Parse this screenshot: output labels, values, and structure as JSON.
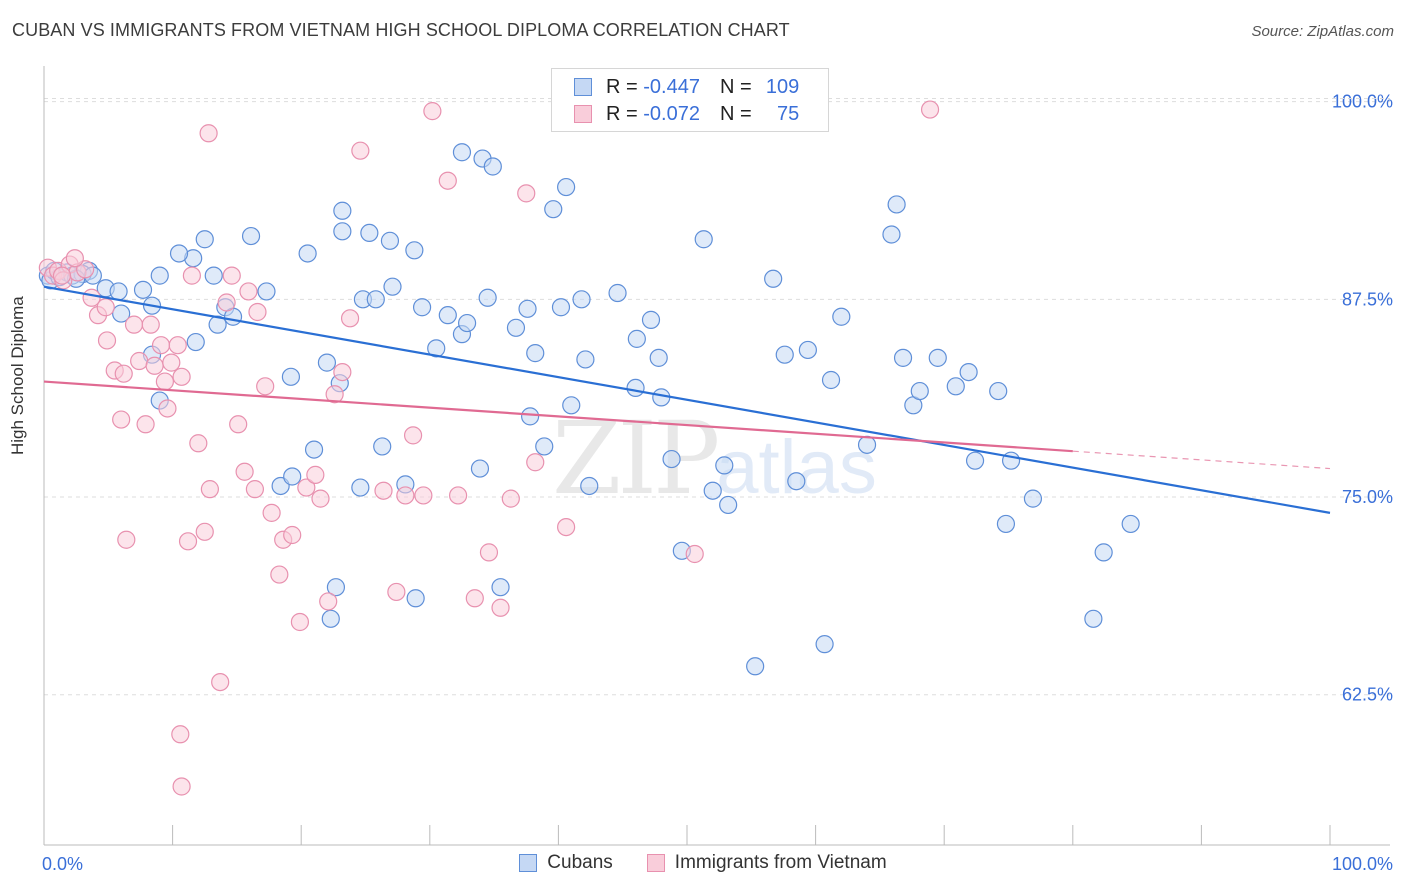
{
  "title": "CUBAN VS IMMIGRANTS FROM VIETNAM HIGH SCHOOL DIPLOMA CORRELATION CHART",
  "source": "Source: ZipAtlas.com",
  "watermark": {
    "zip": "ZIP",
    "atlas": "atlas"
  },
  "legend": {
    "r_label": "R =",
    "n_label": "N =",
    "rows": [
      {
        "r": "-0.447",
        "n": "109"
      },
      {
        "r": "-0.072",
        "n": "75"
      }
    ]
  },
  "colors": {
    "cubans_fill": "#c5d8f4",
    "cubans_stroke": "#5f8fd8",
    "cubans_line": "#2a6fd4",
    "vietnam_fill": "#f9cdda",
    "vietnam_stroke": "#e891af",
    "vietnam_line": "#e06a92",
    "tick_label": "#3a6fd8",
    "grid": "#dddddd"
  },
  "chart_data": {
    "type": "scatter",
    "title": "CUBAN VS IMMIGRANTS FROM VIETNAM HIGH SCHOOL DIPLOMA CORRELATION CHART",
    "xlabel": "",
    "ylabel": "High School Diploma",
    "xlim": [
      0,
      100
    ],
    "ylim": [
      53,
      102
    ],
    "x_tick_labels": [
      "0.0%",
      "100.0%"
    ],
    "y_ticks": [
      62.5,
      75.0,
      87.5,
      100.0
    ],
    "y_tick_labels": [
      "62.5%",
      "75.0%",
      "87.5%",
      "100.0%"
    ],
    "grid": true,
    "legend_position": "top-center",
    "series": [
      {
        "name": "Cubans",
        "trend": {
          "x0": 0,
          "y0": 88.3,
          "x1": 100,
          "y1": 74.0,
          "dash_from": 100
        },
        "points": [
          [
            0.3,
            89.0
          ],
          [
            0.5,
            88.7
          ],
          [
            0.8,
            89.3
          ],
          [
            1.2,
            88.9
          ],
          [
            1.8,
            89.2
          ],
          [
            2.2,
            89.0
          ],
          [
            3.5,
            89.3
          ],
          [
            3.0,
            89.1
          ],
          [
            2.5,
            88.8
          ],
          [
            3.8,
            89.0
          ],
          [
            4.8,
            88.2
          ],
          [
            5.8,
            88.0
          ],
          [
            7.7,
            88.1
          ],
          [
            6.0,
            86.6
          ],
          [
            8.4,
            87.1
          ],
          [
            9.0,
            89.0
          ],
          [
            11.6,
            90.1
          ],
          [
            10.5,
            90.4
          ],
          [
            13.2,
            89.0
          ],
          [
            12.5,
            91.3
          ],
          [
            14.1,
            87.0
          ],
          [
            14.7,
            86.4
          ],
          [
            13.5,
            85.9
          ],
          [
            16.1,
            91.5
          ],
          [
            17.3,
            88.0
          ],
          [
            8.4,
            84.0
          ],
          [
            20.5,
            90.4
          ],
          [
            19.2,
            82.6
          ],
          [
            22.0,
            83.5
          ],
          [
            21.0,
            78.0
          ],
          [
            18.4,
            75.7
          ],
          [
            19.3,
            76.3
          ],
          [
            23.2,
            93.1
          ],
          [
            23.2,
            91.8
          ],
          [
            25.3,
            91.7
          ],
          [
            26.9,
            91.2
          ],
          [
            27.1,
            88.3
          ],
          [
            28.8,
            90.6
          ],
          [
            24.8,
            87.5
          ],
          [
            25.8,
            87.5
          ],
          [
            29.4,
            87.0
          ],
          [
            30.5,
            84.4
          ],
          [
            31.4,
            86.5
          ],
          [
            32.5,
            85.3
          ],
          [
            32.9,
            86.0
          ],
          [
            32.5,
            96.8
          ],
          [
            34.1,
            96.4
          ],
          [
            34.9,
            95.9
          ],
          [
            34.5,
            87.6
          ],
          [
            36.7,
            85.7
          ],
          [
            37.6,
            86.9
          ],
          [
            38.2,
            84.1
          ],
          [
            37.8,
            80.1
          ],
          [
            38.9,
            78.2
          ],
          [
            39.6,
            93.2
          ],
          [
            40.6,
            94.6
          ],
          [
            40.2,
            87.0
          ],
          [
            42.1,
            83.7
          ],
          [
            41.0,
            80.8
          ],
          [
            42.4,
            75.7
          ],
          [
            41.8,
            87.5
          ],
          [
            28.1,
            75.8
          ],
          [
            26.3,
            78.2
          ],
          [
            28.9,
            68.6
          ],
          [
            33.9,
            76.8
          ],
          [
            24.6,
            75.6
          ],
          [
            23.0,
            82.2
          ],
          [
            22.7,
            69.3
          ],
          [
            22.3,
            67.3
          ],
          [
            35.5,
            69.3
          ],
          [
            44.6,
            87.9
          ],
          [
            46.0,
            81.9
          ],
          [
            46.1,
            85.0
          ],
          [
            47.2,
            86.2
          ],
          [
            47.8,
            83.8
          ],
          [
            48.0,
            81.3
          ],
          [
            48.8,
            77.4
          ],
          [
            49.6,
            71.6
          ],
          [
            51.3,
            91.3
          ],
          [
            52.0,
            75.4
          ],
          [
            52.9,
            77.0
          ],
          [
            53.2,
            74.5
          ],
          [
            55.3,
            64.3
          ],
          [
            56.7,
            88.8
          ],
          [
            57.6,
            84.0
          ],
          [
            58.5,
            76.0
          ],
          [
            59.4,
            84.3
          ],
          [
            60.7,
            65.7
          ],
          [
            61.2,
            82.4
          ],
          [
            62.0,
            86.4
          ],
          [
            64.0,
            78.3
          ],
          [
            65.9,
            91.6
          ],
          [
            66.3,
            93.5
          ],
          [
            66.8,
            83.8
          ],
          [
            67.6,
            80.8
          ],
          [
            68.1,
            81.7
          ],
          [
            69.5,
            83.8
          ],
          [
            70.9,
            82.0
          ],
          [
            71.9,
            82.9
          ],
          [
            72.4,
            77.3
          ],
          [
            74.2,
            81.7
          ],
          [
            74.8,
            73.3
          ],
          [
            75.2,
            77.3
          ],
          [
            76.9,
            74.9
          ],
          [
            81.6,
            67.3
          ],
          [
            82.4,
            71.5
          ],
          [
            84.5,
            73.3
          ],
          [
            11.8,
            84.8
          ],
          [
            9.0,
            81.1
          ]
        ]
      },
      {
        "name": "Immigrants from Vietnam",
        "trend": {
          "x0": 0,
          "y0": 82.3,
          "x1": 100,
          "y1": 76.8,
          "dash_from": 80
        },
        "points": [
          [
            0.3,
            89.5
          ],
          [
            0.7,
            89.0
          ],
          [
            1.1,
            89.3
          ],
          [
            1.5,
            88.7
          ],
          [
            2.0,
            89.7
          ],
          [
            2.6,
            89.2
          ],
          [
            1.4,
            89.0
          ],
          [
            3.2,
            89.4
          ],
          [
            2.4,
            90.1
          ],
          [
            3.7,
            87.6
          ],
          [
            4.2,
            86.5
          ],
          [
            4.8,
            87.0
          ],
          [
            4.9,
            84.9
          ],
          [
            5.5,
            83.0
          ],
          [
            6.2,
            82.8
          ],
          [
            6.0,
            79.9
          ],
          [
            6.4,
            72.3
          ],
          [
            7.0,
            85.9
          ],
          [
            7.4,
            83.6
          ],
          [
            7.9,
            79.6
          ],
          [
            8.3,
            85.9
          ],
          [
            8.6,
            83.3
          ],
          [
            9.1,
            84.6
          ],
          [
            9.4,
            82.3
          ],
          [
            9.6,
            80.6
          ],
          [
            9.9,
            83.5
          ],
          [
            10.4,
            84.6
          ],
          [
            10.7,
            82.6
          ],
          [
            11.2,
            72.2
          ],
          [
            11.5,
            89.0
          ],
          [
            12.0,
            78.4
          ],
          [
            12.5,
            72.8
          ],
          [
            12.9,
            75.5
          ],
          [
            13.7,
            63.3
          ],
          [
            14.2,
            87.3
          ],
          [
            14.6,
            89.0
          ],
          [
            15.1,
            79.6
          ],
          [
            15.6,
            76.6
          ],
          [
            15.9,
            88.0
          ],
          [
            16.4,
            75.5
          ],
          [
            16.6,
            86.7
          ],
          [
            17.2,
            82.0
          ],
          [
            17.7,
            74.0
          ],
          [
            18.3,
            70.1
          ],
          [
            18.6,
            72.3
          ],
          [
            19.3,
            72.6
          ],
          [
            19.9,
            67.1
          ],
          [
            20.4,
            75.6
          ],
          [
            21.1,
            76.4
          ],
          [
            21.5,
            74.9
          ],
          [
            22.1,
            68.4
          ],
          [
            22.6,
            81.5
          ],
          [
            23.2,
            82.9
          ],
          [
            23.8,
            86.3
          ],
          [
            24.6,
            96.9
          ],
          [
            26.4,
            75.4
          ],
          [
            27.4,
            69.0
          ],
          [
            28.1,
            75.1
          ],
          [
            28.7,
            78.9
          ],
          [
            29.5,
            75.1
          ],
          [
            30.2,
            99.4
          ],
          [
            31.4,
            95.0
          ],
          [
            32.2,
            75.1
          ],
          [
            33.5,
            68.6
          ],
          [
            34.6,
            71.5
          ],
          [
            35.5,
            68.0
          ],
          [
            36.3,
            74.9
          ],
          [
            37.5,
            94.2
          ],
          [
            38.2,
            77.2
          ],
          [
            40.6,
            73.1
          ],
          [
            50.6,
            71.4
          ],
          [
            68.9,
            99.5
          ],
          [
            12.8,
            98.0
          ],
          [
            10.6,
            60.0
          ],
          [
            10.7,
            56.7
          ]
        ]
      }
    ]
  },
  "bottom_legend": [
    "Cubans",
    "Immigrants from Vietnam"
  ]
}
